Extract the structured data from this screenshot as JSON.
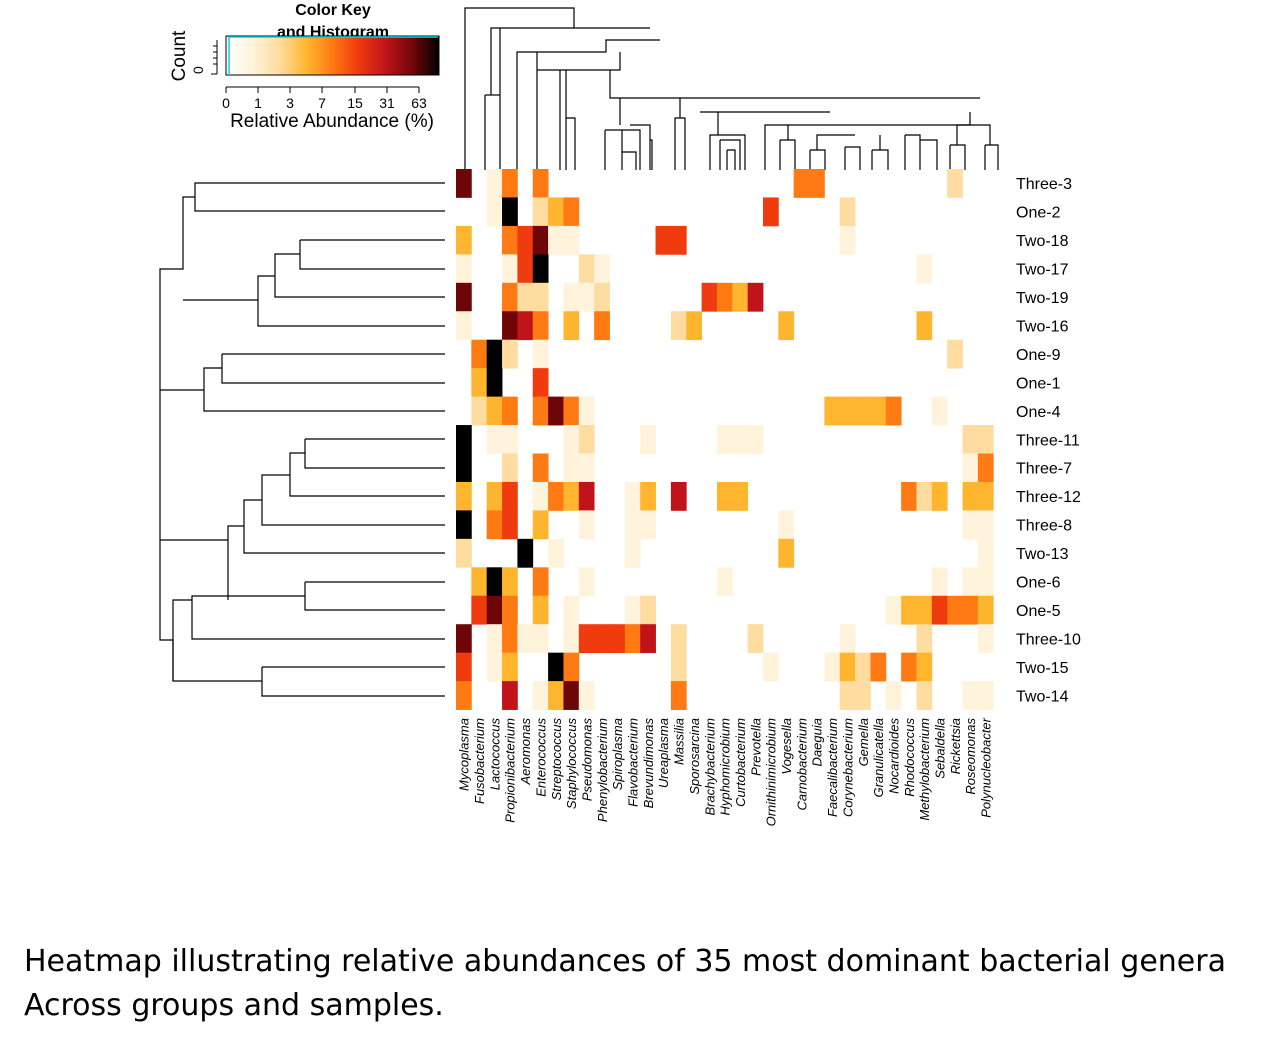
{
  "caption": {
    "line1": "Heatmap illustrating relative abundances of 35 most dominant bacterial genera",
    "line2": "Across groups and samples."
  },
  "color_key": {
    "title_line1": "Color Key",
    "title_line2": "and Histogram",
    "ylabel": "Count",
    "y_ticks": [
      "0"
    ],
    "x_ticks": [
      "0",
      "1",
      "3",
      "7",
      "15",
      "31",
      "63"
    ],
    "xlabel": "Relative Abundance (%)"
  },
  "chart_data": {
    "type": "heatmap",
    "xlabel": "",
    "ylabel": "",
    "color_scale": [
      "#ffffff",
      "#fff3dc",
      "#ffdca0",
      "#ffb52e",
      "#ff7a12",
      "#f03b0e",
      "#c0141a",
      "#6e0608",
      "#000000"
    ],
    "value_range": [
      0,
      63
    ],
    "rows": [
      "Three-3",
      "One-2",
      "Two-18",
      "Two-17",
      "Two-19",
      "Two-16",
      "One-9",
      "One-1",
      "One-4",
      "Three-11",
      "Three-7",
      "Three-12",
      "Three-8",
      "Two-13",
      "One-6",
      "One-5",
      "Three-10",
      "Two-15",
      "Two-14"
    ],
    "columns": [
      "Mycoplasma",
      "Fusobacterium",
      "Lactococcus",
      "Propionibacterium",
      "Aeromonas",
      "Enterococcus",
      "Streptococcus",
      "Staphylococcus",
      "Pseudomonas",
      "Phenylobacterium",
      "Spiroplasma",
      "Flavobacterium",
      "Brevundimonas",
      "Ureaplasma",
      "Massilia",
      "Sporosarcina",
      "Brachybacterium",
      "Hyphomicrobium",
      "Curtobacterium",
      "Prevotella",
      "Ornithinimicrobium",
      "Vogesella",
      "Carnobacterium",
      "Daeguia",
      "Faecalibacterium",
      "Corynebacterium",
      "Gemella",
      "Granulicatella",
      "Nocardioides",
      "Rhodococcus",
      "Methylobacterium",
      "Sebaldella",
      "Rickettsia",
      "Roseomonas",
      "Polynucleobacter"
    ],
    "values": [
      [
        7,
        0,
        0.1,
        4,
        0,
        4,
        0,
        0,
        0,
        0,
        0,
        0,
        0,
        0,
        0,
        0,
        0,
        0,
        0,
        0,
        0,
        0,
        4,
        4,
        0,
        0,
        0,
        0,
        0,
        0,
        0,
        0,
        2,
        0,
        0
      ],
      [
        0,
        0,
        1,
        7.5,
        0,
        2,
        3,
        4,
        0,
        0,
        0,
        0,
        0,
        0,
        0,
        0,
        0,
        0,
        0,
        0,
        5,
        0,
        0,
        0,
        0,
        2,
        0,
        0,
        0,
        0,
        0,
        0,
        0,
        0,
        0
      ],
      [
        3,
        0,
        0,
        4,
        5,
        6.5,
        1,
        1,
        0,
        0,
        0,
        0,
        0,
        5,
        5,
        0,
        0,
        0,
        0,
        0,
        0,
        0,
        0,
        0,
        0,
        0.1,
        0,
        0,
        0,
        0,
        0,
        0,
        0,
        0,
        0
      ],
      [
        1,
        0,
        0,
        0.5,
        5,
        8,
        0,
        0,
        2,
        1,
        0,
        0,
        0,
        0,
        0,
        0,
        0,
        0,
        0,
        0,
        0,
        0,
        0,
        0,
        0,
        0,
        0,
        0,
        0,
        0,
        1,
        0,
        0,
        0,
        0
      ],
      [
        6.5,
        0,
        0,
        4,
        2,
        2,
        0,
        1,
        1,
        2,
        0,
        0,
        0,
        0,
        0,
        0,
        4.5,
        4,
        3,
        5.5,
        0,
        0,
        0,
        0,
        0,
        0,
        0,
        0,
        0,
        0,
        0,
        0,
        0,
        0,
        0
      ],
      [
        0.5,
        0,
        0,
        7,
        6,
        4,
        0,
        3,
        0,
        4,
        0,
        0,
        0,
        0,
        2,
        3,
        0,
        0,
        0,
        0,
        0,
        3,
        0,
        0,
        0,
        0,
        0,
        0,
        0,
        0,
        3,
        0,
        0,
        0,
        0
      ],
      [
        0,
        4,
        8,
        1.5,
        0,
        1,
        0,
        0,
        0,
        0,
        0,
        0,
        0,
        0,
        0,
        0,
        0,
        0,
        0,
        0,
        0,
        0,
        0,
        0,
        0,
        0,
        0,
        0,
        0,
        0,
        0,
        0,
        2,
        0,
        0
      ],
      [
        0,
        3,
        8,
        0,
        0,
        5,
        0,
        0,
        0,
        0,
        0,
        0,
        0,
        0,
        0,
        0,
        0,
        0,
        0,
        0,
        0,
        0,
        0,
        0,
        0,
        0,
        0,
        0,
        0,
        0,
        0,
        0,
        0,
        0,
        0
      ],
      [
        0,
        2,
        2.5,
        4,
        0,
        4,
        7,
        4,
        0.3,
        0,
        0,
        0,
        0,
        0,
        0,
        0,
        0,
        0,
        0,
        0,
        0,
        0,
        0,
        0,
        2.5,
        2.5,
        2.5,
        3,
        4,
        0,
        0,
        1,
        0,
        0,
        0
      ],
      [
        8,
        0,
        0.3,
        1,
        0,
        0,
        0,
        0.5,
        2,
        0,
        0,
        0,
        1,
        0,
        0,
        0,
        0,
        1,
        1,
        1,
        0,
        0,
        0,
        0,
        0,
        0,
        0,
        0,
        0,
        0,
        0,
        0,
        0,
        2,
        1.5
      ],
      [
        8,
        0,
        0,
        1.5,
        0,
        4,
        0,
        0.3,
        0.3,
        0,
        0,
        0,
        0,
        0,
        0,
        0,
        0,
        0,
        0,
        0,
        0,
        0,
        0,
        0,
        0,
        0,
        0,
        0,
        0,
        0,
        0,
        0,
        0,
        0.5,
        3.5
      ],
      [
        3,
        0,
        3,
        5,
        0,
        1,
        4,
        3,
        6,
        0,
        0,
        1,
        3,
        0,
        5.5,
        0,
        0,
        2.5,
        2.5,
        0,
        0,
        0,
        0,
        0,
        0,
        0,
        0,
        0,
        0,
        4,
        2,
        3,
        0,
        2.5,
        3
      ],
      [
        7.5,
        0,
        4,
        5,
        0,
        3,
        0,
        0,
        0.5,
        0,
        0,
        0.3,
        0.3,
        0,
        0,
        0,
        0,
        0,
        0,
        0,
        0,
        0.3,
        0,
        0,
        0,
        0,
        0,
        0,
        0,
        0,
        0,
        0,
        0,
        1,
        1
      ],
      [
        1.5,
        0,
        0,
        0,
        8,
        0,
        0.3,
        0,
        0,
        0,
        0,
        0.5,
        0,
        0,
        0,
        0,
        0,
        0,
        0,
        0,
        0,
        3,
        0,
        0,
        0,
        0,
        0,
        0,
        0,
        0,
        0,
        0,
        0,
        0,
        0.2
      ],
      [
        0,
        3,
        8,
        3,
        0,
        4,
        0,
        0,
        0.2,
        0,
        0,
        0,
        0,
        0,
        0,
        0,
        0,
        0.2,
        0,
        0,
        0,
        0,
        0,
        0,
        0,
        0,
        0,
        0,
        0,
        0,
        0,
        1,
        0,
        1,
        1
      ],
      [
        0,
        5,
        7,
        4,
        0,
        3,
        0,
        0.5,
        0,
        0,
        0,
        1,
        2,
        0,
        0,
        0,
        0,
        0,
        0,
        0,
        0,
        0,
        0,
        0,
        0,
        0,
        0,
        0,
        0.2,
        3,
        2.5,
        5,
        4,
        3.5,
        2.5
      ],
      [
        6.5,
        0,
        0.2,
        4,
        1,
        1,
        0,
        1,
        5,
        4.5,
        5,
        4,
        5.5,
        0,
        1.5,
        0,
        0,
        0,
        0,
        1.5,
        0,
        0,
        0,
        0,
        0,
        0.2,
        0,
        0,
        0,
        0,
        2,
        0,
        0,
        0,
        1
      ],
      [
        5,
        0,
        0.5,
        3,
        0,
        0,
        7.5,
        4,
        0,
        0,
        0,
        0,
        0,
        0,
        1.5,
        0,
        0,
        0,
        0,
        0,
        1,
        0,
        0,
        0,
        0.5,
        3,
        2,
        3.5,
        0,
        3.5,
        2.5,
        0,
        0,
        0,
        0
      ],
      [
        4,
        0,
        0,
        6,
        0,
        1,
        3,
        7,
        0.3,
        0,
        0,
        0,
        0,
        0,
        4,
        0,
        0,
        0,
        0,
        0,
        0,
        0,
        0,
        0,
        0,
        2,
        1.5,
        0,
        1,
        0,
        2,
        0,
        0,
        1,
        1
      ]
    ]
  }
}
